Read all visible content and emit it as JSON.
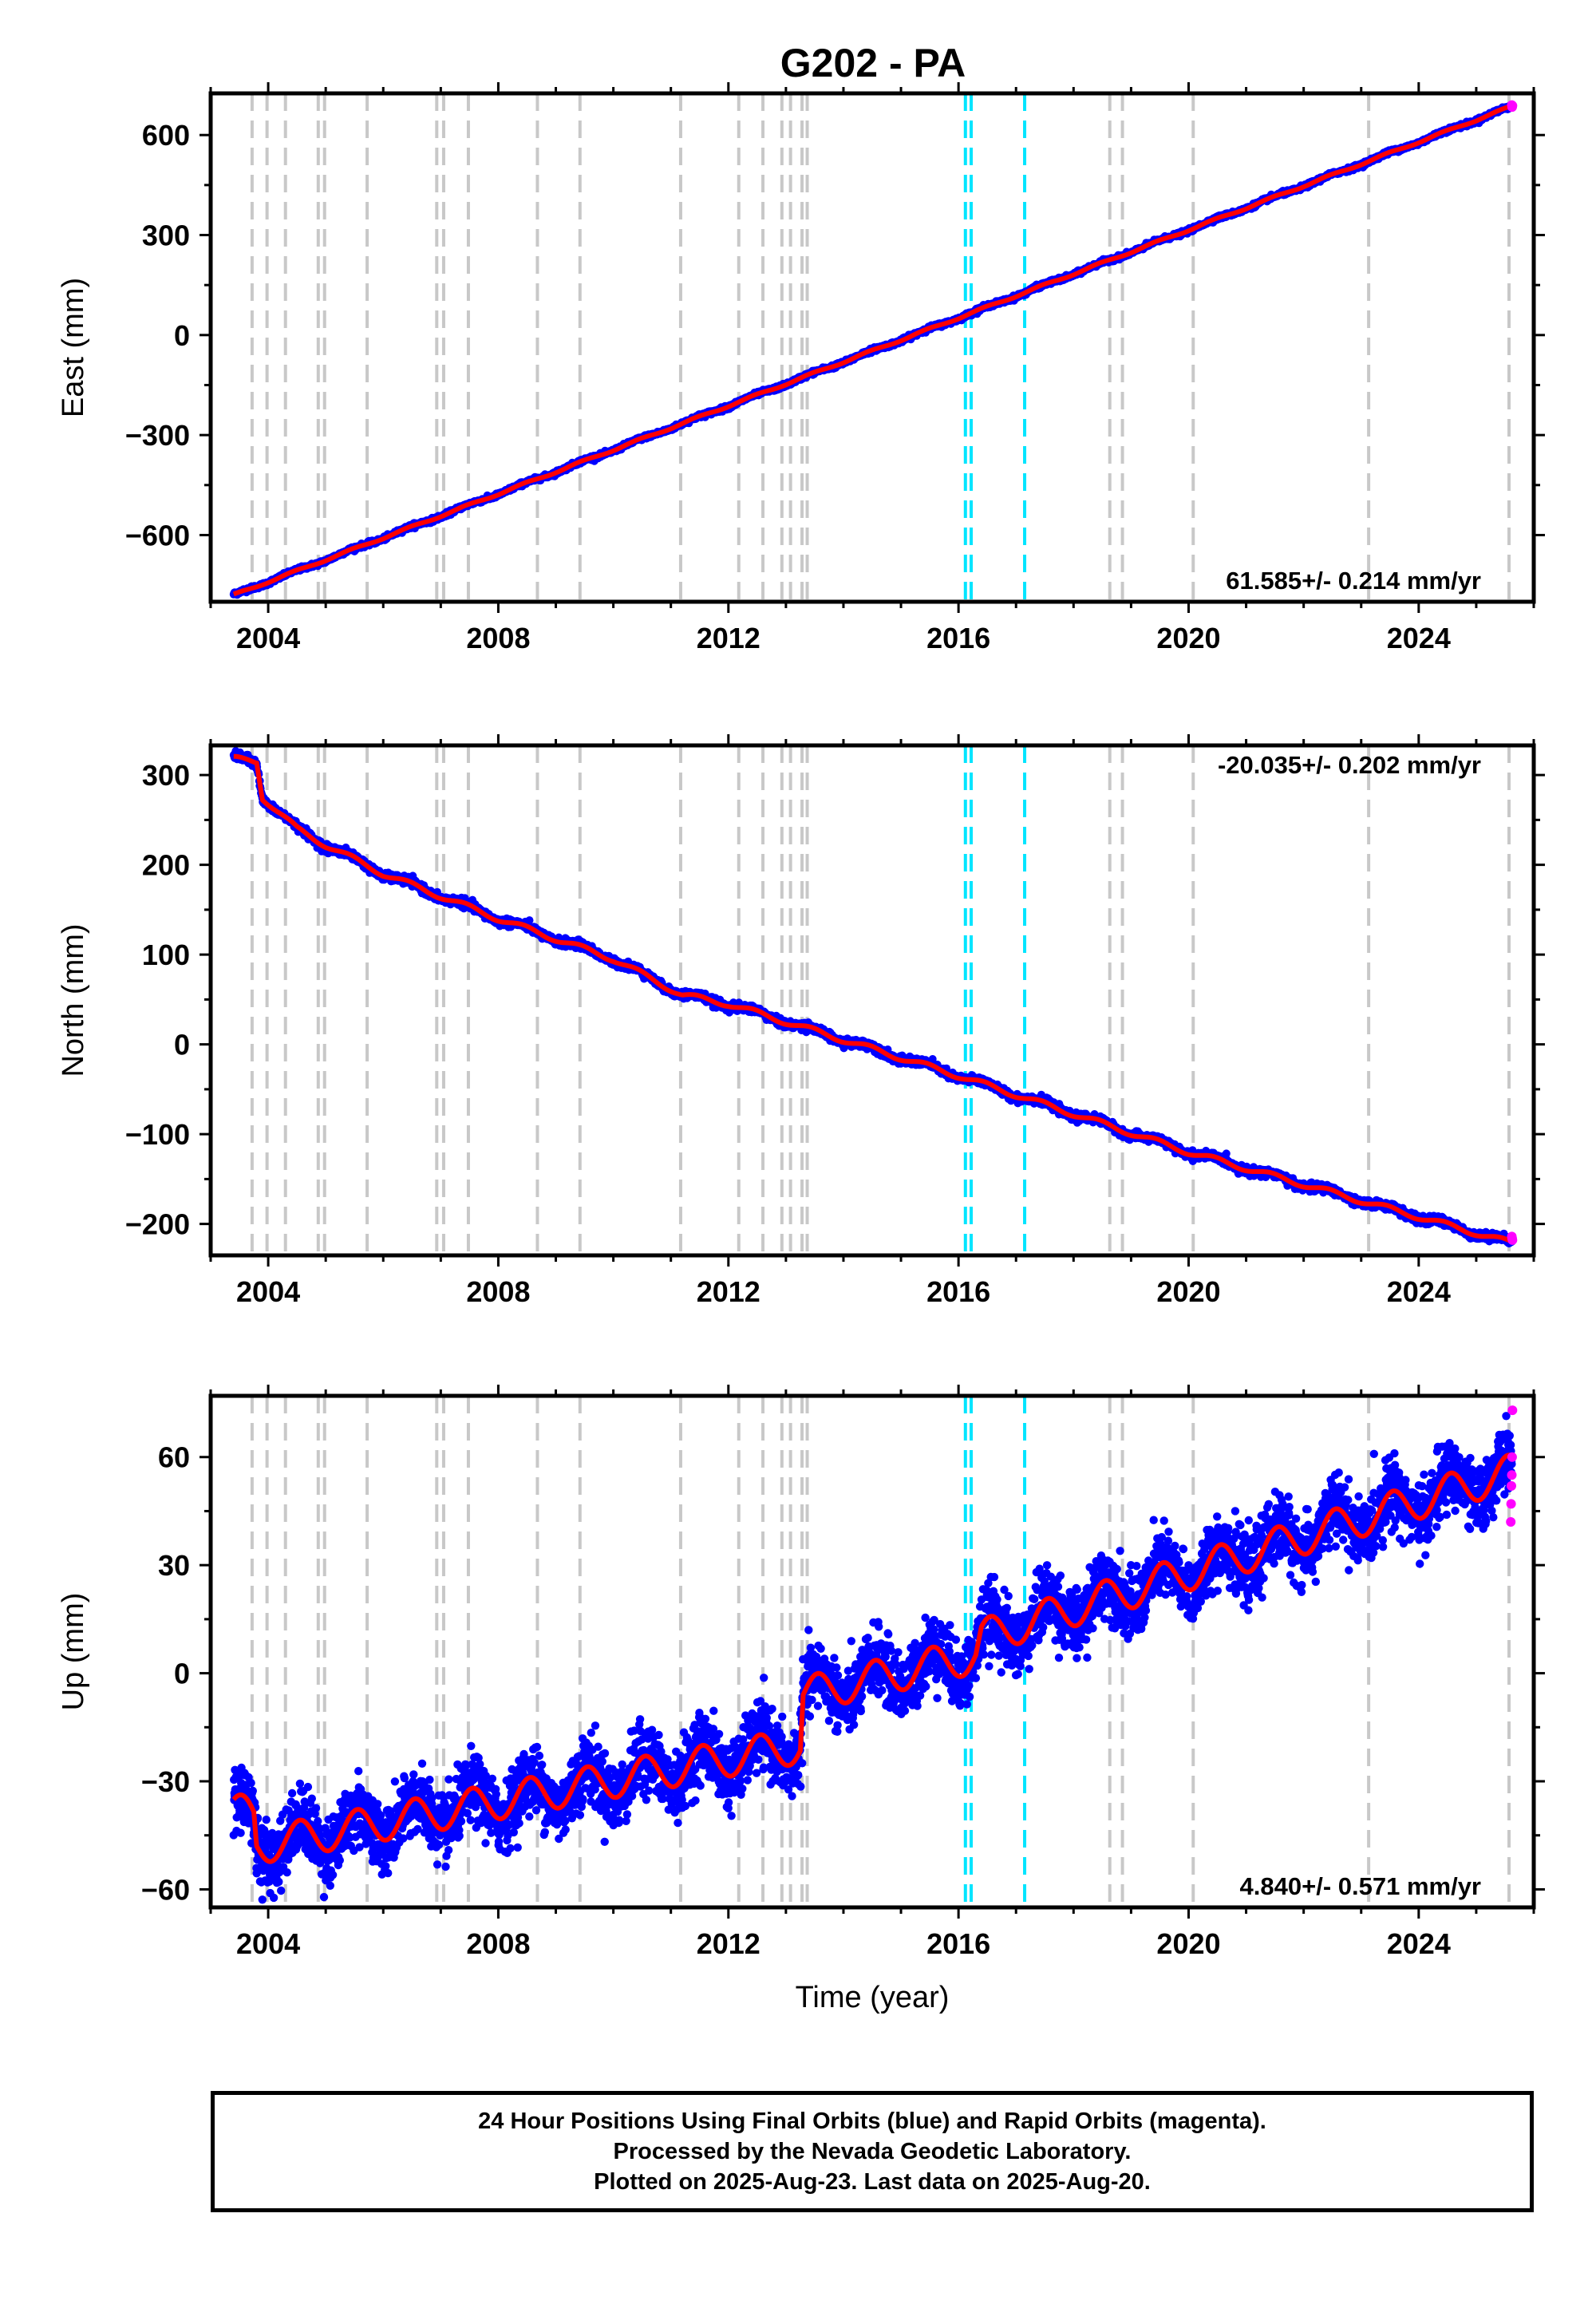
{
  "title": "G202 - PA",
  "colors": {
    "final_points": "#0000ff",
    "rapid_points": "#ff00ff",
    "model_line": "#ff0000",
    "gray_event": "#c8c8c8",
    "cyan_event": "#00e5ff"
  },
  "chart_data": [
    {
      "type": "scatter",
      "component": "East",
      "ylabel": "East (mm)",
      "xlabel": "",
      "xlim": [
        2003.0,
        2026.0
      ],
      "ylim": [
        -800,
        725
      ],
      "x_ticks": [
        "2004",
        "2008",
        "2012",
        "2016",
        "2020",
        "2024"
      ],
      "y_ticks": [
        "600",
        "300",
        "0",
        "−300",
        "−600"
      ],
      "y_tick_values": [
        600,
        300,
        0,
        -300,
        -600
      ],
      "rate": "61.585+/- 0.214 mm/yr",
      "rate_position": "bottom-right",
      "series": [
        {
          "name": "",
          "kind": "trend",
          "x": [
            2003.4,
            2025.65
          ],
          "y": [
            -780,
            688
          ]
        }
      ],
      "rapid_tail": [
        688,
        684,
        690
      ]
    },
    {
      "type": "scatter",
      "component": "North",
      "ylabel": "North (mm)",
      "xlabel": "",
      "xlim": [
        2003.0,
        2026.0
      ],
      "ylim": [
        -235,
        333
      ],
      "x_ticks": [
        "2004",
        "2008",
        "2012",
        "2016",
        "2020",
        "2024"
      ],
      "y_ticks": [
        "300",
        "200",
        "100",
        "0",
        "−100",
        "−200"
      ],
      "y_tick_values": [
        300,
        200,
        100,
        0,
        -100,
        -200
      ],
      "rate": "-20.035+/- 0.202 mm/yr",
      "rate_position": "top-right",
      "series": [
        {
          "name": "",
          "kind": "trend",
          "x": [
            2003.4,
            2003.8,
            2003.9,
            2004.5,
            2005.0,
            2006.0,
            2008.0,
            2010.0,
            2011.2,
            2012.0,
            2013.0,
            2016.0,
            2020.0,
            2025.65
          ],
          "y": [
            318,
            315,
            275,
            240,
            222,
            190,
            140,
            95,
            55,
            45,
            25,
            -35,
            -120,
            -222
          ]
        }
      ],
      "rapid_tail": [
        -218,
        -216,
        -214
      ]
    },
    {
      "type": "scatter",
      "component": "Up",
      "ylabel": "Up (mm)",
      "xlabel": "Time (year)",
      "xlim": [
        2003.0,
        2026.0
      ],
      "ylim": [
        -65,
        77
      ],
      "x_ticks": [
        "2004",
        "2008",
        "2012",
        "2016",
        "2020",
        "2024"
      ],
      "y_ticks": [
        "60",
        "30",
        "0",
        "−30",
        "−60"
      ],
      "y_tick_values": [
        60,
        30,
        0,
        -30,
        -60
      ],
      "rate": "4.840+/- 0.571 mm/yr",
      "rate_position": "bottom-right",
      "series": [
        {
          "name": "",
          "kind": "trend",
          "x": [
            2003.4,
            2003.75,
            2003.8,
            2013.25,
            2013.3,
            2016.3,
            2016.4,
            2025.65
          ],
          "y": [
            -38,
            -40,
            -48,
            -20,
            -6,
            5,
            10,
            56
          ]
        }
      ],
      "rapid_tail": [
        73,
        60,
        55,
        52,
        47,
        42
      ]
    }
  ],
  "event_lines": {
    "gray": [
      2003.72,
      2003.98,
      2004.3,
      2004.87,
      2004.98,
      2005.72,
      2006.93,
      2007.05,
      2007.48,
      2008.68,
      2009.42,
      2011.17,
      2012.18,
      2012.6,
      2012.93,
      2013.08,
      2013.28,
      2013.37,
      2018.63,
      2018.85,
      2020.08,
      2023.13,
      2025.57
    ],
    "cyan": [
      2016.12,
      2016.22,
      2017.15
    ]
  },
  "footer": {
    "line1": "24 Hour Positions Using Final Orbits (blue) and Rapid Orbits (magenta).",
    "line2": "Processed by the Nevada Geodetic Laboratory.",
    "line3": "Plotted on 2025-Aug-23. Last data on 2025-Aug-20."
  }
}
